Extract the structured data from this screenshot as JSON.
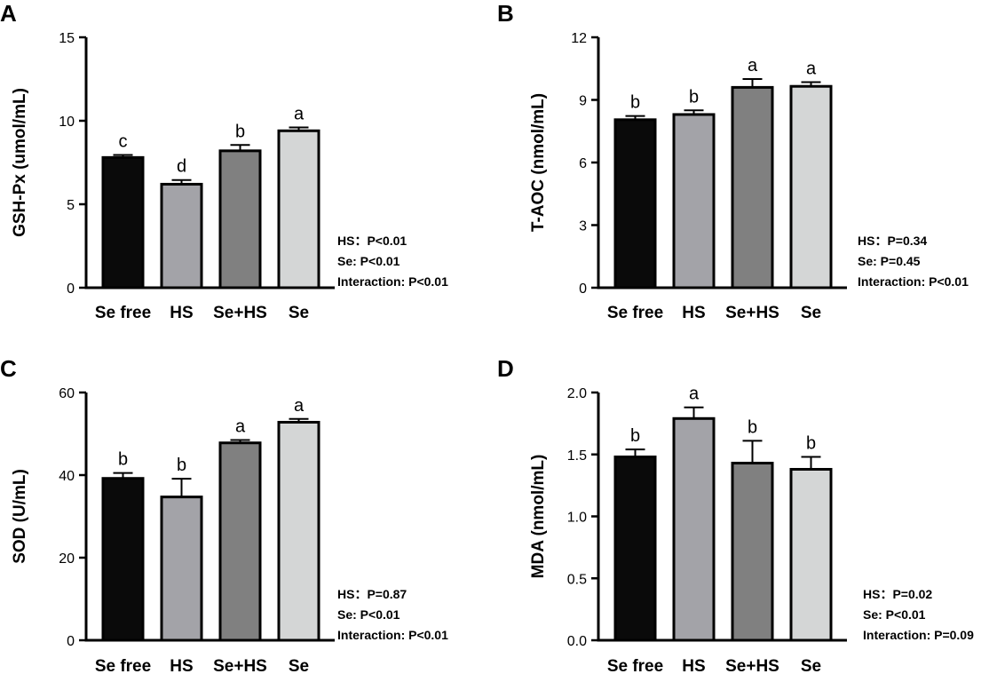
{
  "chart_data": [
    {
      "panel": "A",
      "type": "bar",
      "ylabel": "GSH-Px (umol/mL)",
      "categories": [
        "Se free",
        "HS",
        "Se+HS",
        "Se"
      ],
      "values": [
        7.8,
        6.2,
        8.2,
        9.4
      ],
      "errors": [
        0.15,
        0.25,
        0.35,
        0.2
      ],
      "letters": [
        "c",
        "d",
        "b",
        "a"
      ],
      "ylim": [
        0,
        15
      ],
      "yticks": [
        "0",
        "5",
        "10",
        "15"
      ],
      "colors": [
        "#0a0a0a",
        "#a3a3a8",
        "#808080",
        "#d4d6d6"
      ],
      "stats": [
        "HS：P<0.01",
        "Se: P<0.01",
        "Interaction: P<0.01"
      ]
    },
    {
      "panel": "B",
      "type": "bar",
      "ylabel": "T-AOC (nmol/mL)",
      "categories": [
        "Se free",
        "HS",
        "Se+HS",
        "Se"
      ],
      "values": [
        8.05,
        8.3,
        9.6,
        9.65
      ],
      "errors": [
        0.18,
        0.2,
        0.4,
        0.2
      ],
      "letters": [
        "b",
        "b",
        "a",
        "a"
      ],
      "ylim": [
        0,
        12
      ],
      "yticks": [
        "0",
        "3",
        "6",
        "9",
        "12"
      ],
      "colors": [
        "#0a0a0a",
        "#a3a3a8",
        "#808080",
        "#d4d6d6"
      ],
      "stats": [
        "HS：P=0.34",
        "Se: P=0.45",
        "Interaction: P<0.01"
      ]
    },
    {
      "panel": "C",
      "type": "bar",
      "ylabel": "SOD (U/mL)",
      "categories": [
        "Se free",
        "HS",
        "Se+HS",
        "Se"
      ],
      "values": [
        39.2,
        34.7,
        47.8,
        52.8
      ],
      "errors": [
        1.3,
        4.4,
        0.7,
        0.8
      ],
      "letters": [
        "b",
        "b",
        "a",
        "a"
      ],
      "ylim": [
        0,
        60
      ],
      "yticks": [
        "0",
        "20",
        "40",
        "60"
      ],
      "colors": [
        "#0a0a0a",
        "#a3a3a8",
        "#808080",
        "#d4d6d6"
      ],
      "stats": [
        "HS：P=0.87",
        "Se: P<0.01",
        "Interaction: P<0.01"
      ]
    },
    {
      "panel": "D",
      "type": "bar",
      "ylabel": "MDA (nmol/mL)",
      "categories": [
        "Se free",
        "HS",
        "Se+HS",
        "Se"
      ],
      "values": [
        1.48,
        1.79,
        1.43,
        1.38
      ],
      "errors": [
        0.06,
        0.09,
        0.18,
        0.1
      ],
      "letters": [
        "b",
        "a",
        "b",
        "b"
      ],
      "ylim": [
        0,
        2.0
      ],
      "yticks": [
        "0.0",
        "0.5",
        "1.0",
        "1.5",
        "2.0"
      ],
      "colors": [
        "#0a0a0a",
        "#a3a3a8",
        "#808080",
        "#d4d6d6"
      ],
      "stats": [
        "HS：P=0.02",
        "Se: P<0.01",
        "Interaction: P=0.09"
      ]
    }
  ]
}
